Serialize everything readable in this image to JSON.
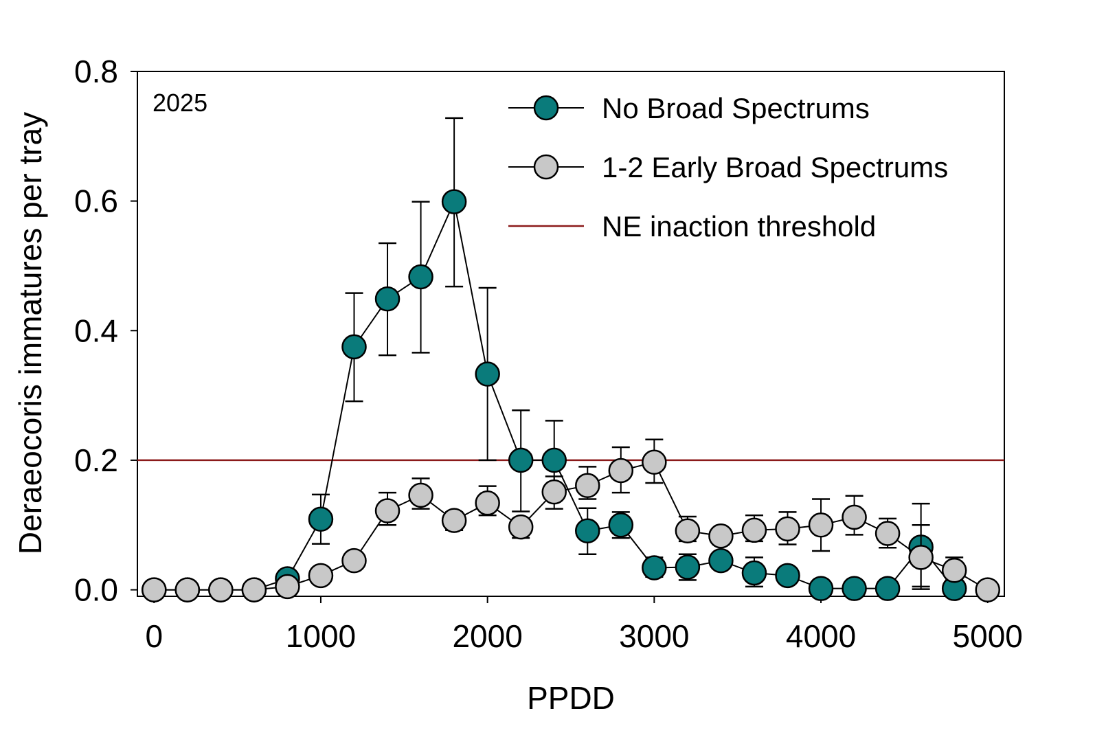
{
  "chart_data": {
    "type": "line",
    "title": "",
    "annotation": "2025",
    "xlabel": "PPDD",
    "ylabel": "Deraeocoris immatures per tray",
    "xlim": [
      -100,
      5100
    ],
    "ylim": [
      -0.01,
      0.8
    ],
    "xticks": [
      "0",
      "1000",
      "2000",
      "3000",
      "4000",
      "5000"
    ],
    "xtick_values": [
      0,
      1000,
      2000,
      3000,
      4000,
      5000
    ],
    "yticks": [
      "0.0",
      "0.2",
      "0.4",
      "0.6",
      "0.8"
    ],
    "ytick_values": [
      0,
      0.2,
      0.4,
      0.6,
      0.8
    ],
    "grid": false,
    "legend_position": "top-right",
    "threshold": {
      "name": "NE inaction threshold",
      "value": 0.2,
      "color": "#8b1a1a"
    },
    "series": [
      {
        "name": "No Broad Spectrums",
        "color": "#0a7b7b",
        "x": [
          0,
          200,
          400,
          600,
          800,
          1000,
          1200,
          1400,
          1600,
          1800,
          2000,
          2200,
          2400,
          2600,
          2800,
          3000,
          3200,
          3400,
          3600,
          3800,
          4000,
          4200,
          4400,
          4600,
          4800
        ],
        "y": [
          0,
          0,
          0,
          0,
          0.017,
          0.109,
          0.375,
          0.449,
          0.483,
          0.599,
          0.333,
          0.2,
          0.2,
          0.091,
          0.1,
          0.034,
          0.035,
          0.045,
          0.026,
          0.022,
          0.002,
          0.002,
          0.002,
          0.066,
          0.002
        ],
        "err": [
          [
            0,
            0
          ],
          [
            0,
            0
          ],
          [
            0,
            0
          ],
          [
            0,
            0
          ],
          [
            0.017,
            0.017
          ],
          [
            0.071,
            0.147
          ],
          [
            0.291,
            0.458
          ],
          [
            0.362,
            0.535
          ],
          [
            0.366,
            0.599
          ],
          [
            0.468,
            0.728
          ],
          [
            0.2,
            0.466
          ],
          [
            0.121,
            0.277
          ],
          [
            0.14,
            0.261
          ],
          [
            0.055,
            0.126
          ],
          [
            0.08,
            0.12
          ],
          [
            0.02,
            0.05
          ],
          [
            0.015,
            0.055
          ],
          [
            0.045,
            0.045
          ],
          [
            0.005,
            0.05
          ],
          [
            0.022,
            0.022
          ],
          [
            0.002,
            0.002
          ],
          [
            0.002,
            0.002
          ],
          [
            0.002,
            0.002
          ],
          [
            0.001,
            0.133
          ],
          [
            0.002,
            0.002
          ]
        ]
      },
      {
        "name": "1-2 Early Broad Spectrums",
        "color": "#c8c8c8",
        "x": [
          0,
          200,
          400,
          600,
          800,
          1000,
          1200,
          1400,
          1600,
          1800,
          2000,
          2200,
          2400,
          2600,
          2800,
          3000,
          3200,
          3400,
          3600,
          3800,
          4000,
          4200,
          4400,
          4600,
          4800,
          5000
        ],
        "y": [
          0,
          0,
          0,
          0,
          0.005,
          0.022,
          0.045,
          0.122,
          0.146,
          0.107,
          0.134,
          0.097,
          0.151,
          0.161,
          0.184,
          0.197,
          0.091,
          0.083,
          0.092,
          0.094,
          0.1,
          0.112,
          0.087,
          0.05,
          0.03,
          0
        ],
        "err": [
          [
            0,
            0
          ],
          [
            0,
            0
          ],
          [
            0,
            0
          ],
          [
            0,
            0
          ],
          [
            0.005,
            0.005
          ],
          [
            0.022,
            0.022
          ],
          [
            0.045,
            0.045
          ],
          [
            0.1,
            0.15
          ],
          [
            0.125,
            0.172
          ],
          [
            0.092,
            0.12
          ],
          [
            0.115,
            0.16
          ],
          [
            0.08,
            0.11
          ],
          [
            0.125,
            0.175
          ],
          [
            0.14,
            0.19
          ],
          [
            0.15,
            0.22
          ],
          [
            0.165,
            0.232
          ],
          [
            0.075,
            0.113
          ],
          [
            0.07,
            0.095
          ],
          [
            0.075,
            0.115
          ],
          [
            0.07,
            0.12
          ],
          [
            0.06,
            0.14
          ],
          [
            0.085,
            0.145
          ],
          [
            0.065,
            0.11
          ],
          [
            0.005,
            0.1
          ],
          [
            0.015,
            0.05
          ],
          [
            0,
            0
          ]
        ]
      }
    ]
  }
}
